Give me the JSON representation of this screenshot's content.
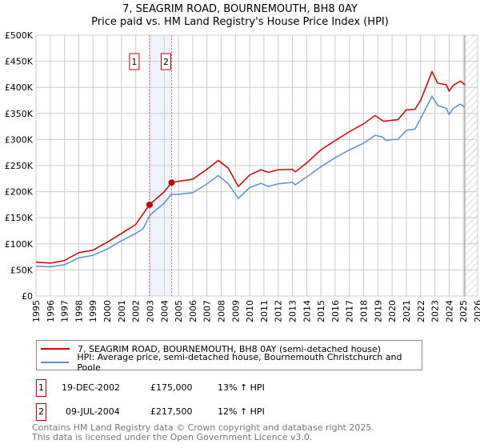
{
  "title": "7, SEAGRIM ROAD, BOURNEMOUTH, BH8 0AY",
  "subtitle": "Price paid vs. HM Land Registry's House Price Index (HPI)",
  "colors": {
    "property": "#cc0000",
    "hpi": "#5b8fd4",
    "shade": "#eef3fc"
  },
  "chart_data": {
    "type": "line",
    "title": "7, SEAGRIM ROAD, BOURNEMOUTH, BH8 0AY - Price paid vs. HM Land Registry's House Price Index (HPI)",
    "xlim": [
      1995,
      2026
    ],
    "ylim": [
      0,
      500000
    ],
    "x_ticks": [
      "1995",
      "1996",
      "1997",
      "1998",
      "1999",
      "2000",
      "2001",
      "2002",
      "2003",
      "2004",
      "2005",
      "2006",
      "2007",
      "2008",
      "2009",
      "2010",
      "2011",
      "2012",
      "2013",
      "2014",
      "2015",
      "2016",
      "2017",
      "2018",
      "2019",
      "2020",
      "2021",
      "2022",
      "2023",
      "2024",
      "2025",
      "2026"
    ],
    "y_ticks": [
      {
        "v": 0,
        "label": "£0"
      },
      {
        "v": 50000,
        "label": "£50K"
      },
      {
        "v": 100000,
        "label": "£100K"
      },
      {
        "v": 150000,
        "label": "£150K"
      },
      {
        "v": 200000,
        "label": "£200K"
      },
      {
        "v": 250000,
        "label": "£250K"
      },
      {
        "v": 300000,
        "label": "£300K"
      },
      {
        "v": 350000,
        "label": "£350K"
      },
      {
        "v": 400000,
        "label": "£400K"
      },
      {
        "v": 450000,
        "label": "£450K"
      },
      {
        "v": 500000,
        "label": "£500K"
      }
    ],
    "grid": true,
    "forecast_hatch_from": 2025.1,
    "series": [
      {
        "name": "7, SEAGRIM ROAD, BOURNEMOUTH, BH8 0AY (semi-detached house)",
        "color": "#cc0000",
        "x": [
          1995,
          1996,
          1997,
          1998,
          1999,
          2000,
          2001,
          2002,
          2002.97,
          2004,
          2004.52,
          2005,
          2006,
          2007,
          2007.8,
          2008.5,
          2009.2,
          2010,
          2010.8,
          2011.3,
          2012,
          2013,
          2013.2,
          2014,
          2015,
          2016,
          2017,
          2018,
          2018.8,
          2019.4,
          2020,
          2020.4,
          2021,
          2021.6,
          2022,
          2022.8,
          2023.2,
          2023.8,
          2024,
          2024.3,
          2024.8,
          2025.1
        ],
        "y": [
          65000,
          63000,
          68000,
          83000,
          88000,
          103000,
          120000,
          137000,
          175000,
          200000,
          217500,
          220000,
          224000,
          243000,
          260000,
          245000,
          210000,
          232000,
          242000,
          237000,
          242000,
          243000,
          238000,
          255000,
          280000,
          298000,
          315000,
          330000,
          346000,
          335000,
          337000,
          338000,
          357000,
          358000,
          375000,
          430000,
          408000,
          405000,
          393000,
          404000,
          412000,
          405000
        ]
      },
      {
        "name": "HPI: Average price, semi-detached house, Bournemouth Christchurch and Poole",
        "color": "#5b8fd4",
        "x": [
          1995,
          1996,
          1997,
          1998,
          1999,
          2000,
          2001,
          2002,
          2002.5,
          2003,
          2004,
          2004.5,
          2005,
          2006,
          2007,
          2007.8,
          2008.5,
          2009.2,
          2010,
          2010.8,
          2011.3,
          2012,
          2013,
          2013.2,
          2014,
          2015,
          2016,
          2017,
          2018,
          2018.8,
          2019.3,
          2019.6,
          2020,
          2020.4,
          2021,
          2021.6,
          2022,
          2022.8,
          2023.2,
          2023.8,
          2024,
          2024.3,
          2024.8,
          2025.1
        ],
        "y": [
          57000,
          56000,
          60000,
          73000,
          78000,
          90000,
          106000,
          120000,
          128000,
          155000,
          178000,
          195000,
          195000,
          198000,
          215000,
          231000,
          215000,
          187000,
          208000,
          216000,
          210000,
          215000,
          218000,
          213000,
          228000,
          248000,
          265000,
          280000,
          293000,
          308000,
          305000,
          298000,
          300000,
          300000,
          318000,
          320000,
          340000,
          383000,
          365000,
          360000,
          348000,
          360000,
          368000,
          362000
        ]
      }
    ],
    "sales": [
      {
        "id": "1",
        "x": 2002.97,
        "y": 175000,
        "date": "19-DEC-2002",
        "price": "£175,000",
        "hpi": "13% ↑ HPI"
      },
      {
        "id": "2",
        "x": 2004.52,
        "y": 217500,
        "date": "09-JUL-2004",
        "price": "£217,500",
        "hpi": "12% ↑ HPI"
      }
    ]
  },
  "legend": {
    "property": "7, SEAGRIM ROAD, BOURNEMOUTH, BH8 0AY (semi-detached house)",
    "hpi": "HPI: Average price, semi-detached house, Bournemouth Christchurch and Poole"
  },
  "footer": {
    "line1": "Contains HM Land Registry data © Crown copyright and database right 2025.",
    "line2": "This data is licensed under the Open Government Licence v3.0."
  }
}
